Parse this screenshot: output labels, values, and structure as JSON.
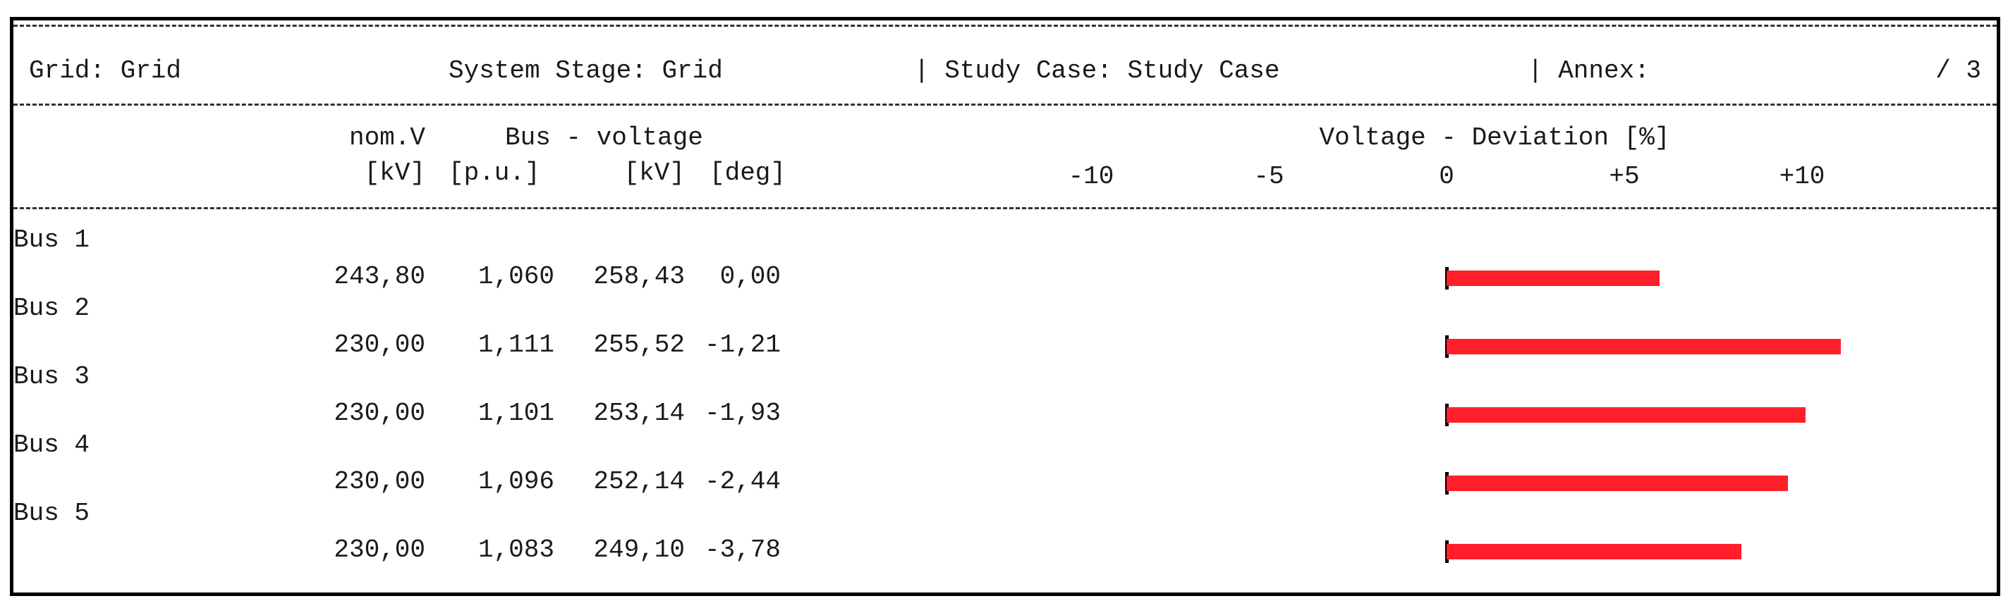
{
  "header": {
    "grid": "Grid: Grid",
    "system_stage": "System Stage: Grid",
    "study_case": "| Study Case: Study Case",
    "annex": "| Annex:",
    "page": "/ 3"
  },
  "columns": {
    "nomv_label": "nom.V",
    "busvoltage_label": "Bus - voltage",
    "deviation_label": "Voltage - Deviation [%]",
    "unit_kv1": "[kV]",
    "unit_pu": "[p.u.]",
    "unit_kv2": "[kV]",
    "unit_deg": "[deg]",
    "scale_ticks": [
      "-10",
      "-5",
      "0",
      "+5",
      "+10"
    ]
  },
  "buses": [
    {
      "name": "Bus 1",
      "nom_kv": "243,80",
      "pu": "1,060",
      "kv": "258,43",
      "deg": "0,00",
      "deviation_pct": 6.0
    },
    {
      "name": "Bus 2",
      "nom_kv": "230,00",
      "pu": "1,111",
      "kv": "255,52",
      "deg": "-1,21",
      "deviation_pct": 11.1
    },
    {
      "name": "Bus 3",
      "nom_kv": "230,00",
      "pu": "1,101",
      "kv": "253,14",
      "deg": "-1,93",
      "deviation_pct": 10.1
    },
    {
      "name": "Bus 4",
      "nom_kv": "230,00",
      "pu": "1,096",
      "kv": "252,14",
      "deg": "-2,44",
      "deviation_pct": 9.6
    },
    {
      "name": "Bus 5",
      "nom_kv": "230,00",
      "pu": "1,083",
      "kv": "249,10",
      "deg": "-3,78",
      "deviation_pct": 8.3
    }
  ],
  "colors": {
    "bar": "#ff1f2a",
    "text": "#1a1a1a",
    "border": "#000000"
  }
}
